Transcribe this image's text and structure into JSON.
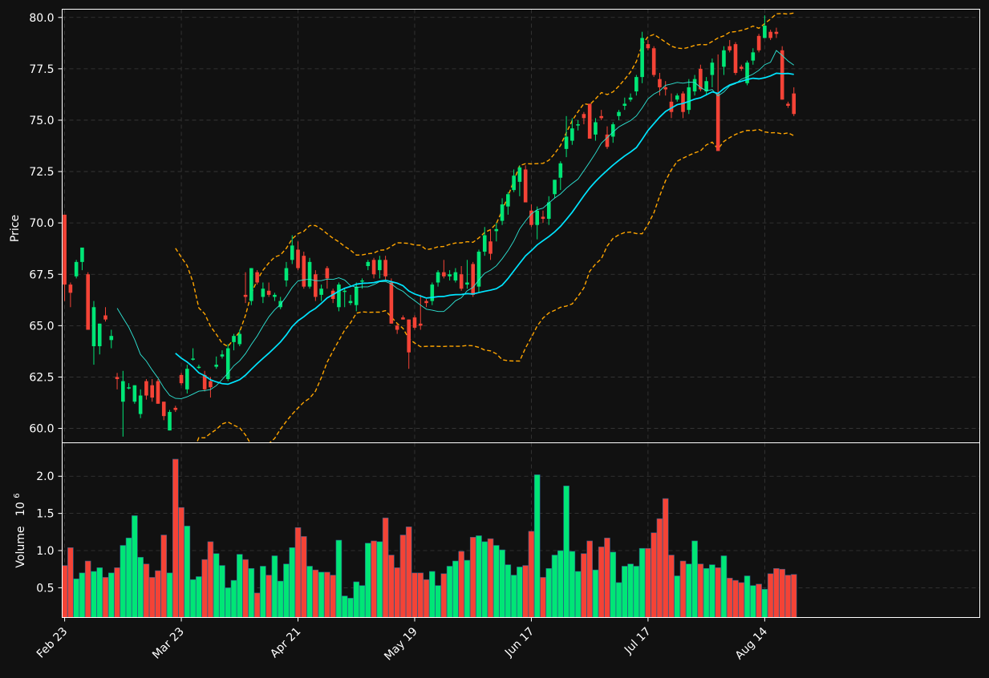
{
  "theme": {
    "background": "#111111",
    "axis_color": "#ffffff",
    "grid_color": "#3a3a3a",
    "up_color": "#00e676",
    "down_color": "#f44336",
    "sma_fast_color": "#2ee6d6",
    "sma_slow_color": "#00e5ff",
    "bollinger_color": "#ffa500"
  },
  "chart_data": {
    "type": "candlestick",
    "panels": {
      "price": {
        "ylabel": "Price",
        "ylim": [
          59.3,
          80.4
        ],
        "yticks": [
          "60.0",
          "62.5",
          "65.0",
          "67.5",
          "70.0",
          "72.5",
          "75.0",
          "77.5",
          "80.0"
        ],
        "grid": true
      },
      "volume": {
        "ylabel": "Volume",
        "ylabel_exponent": "10",
        "ylabel_exponent_power": "6",
        "ylim": [
          0.1,
          2.45
        ],
        "yticks": [
          "0.5",
          "1.0",
          "1.5",
          "2.0"
        ],
        "grid": true
      }
    },
    "x_tick_labels": [
      {
        "i": 0,
        "label": "Feb 23"
      },
      {
        "i": 20,
        "label": "Mar 23"
      },
      {
        "i": 40,
        "label": "Apr 21"
      },
      {
        "i": 60,
        "label": "May 19"
      },
      {
        "i": 80,
        "label": "Jun 17"
      },
      {
        "i": 100,
        "label": "Jul 17"
      },
      {
        "i": 120,
        "label": "Aug 14"
      }
    ],
    "n_bars": 126,
    "ohlcv": [
      [
        70.4,
        70.4,
        66.2,
        67.0,
        0.8
      ],
      [
        67.0,
        67.1,
        65.9,
        66.6,
        1.04
      ],
      [
        67.4,
        68.2,
        67.3,
        68.1,
        0.62
      ],
      [
        68.1,
        68.6,
        67.7,
        68.8,
        0.7
      ],
      [
        67.5,
        67.6,
        64.8,
        64.8,
        0.86
      ],
      [
        64.0,
        66.2,
        63.1,
        65.9,
        0.72
      ],
      [
        64.0,
        65.1,
        63.6,
        65.1,
        0.77
      ],
      [
        65.5,
        65.9,
        65.2,
        65.3,
        0.64
      ],
      [
        64.3,
        64.8,
        63.9,
        64.5,
        0.7
      ],
      [
        62.5,
        62.7,
        61.9,
        62.4,
        0.77
      ],
      [
        61.3,
        62.8,
        59.6,
        62.3,
        1.07
      ],
      [
        62.0,
        62.2,
        61.9,
        62.0,
        1.17
      ],
      [
        61.3,
        62.1,
        61.2,
        62.1,
        1.47
      ],
      [
        60.7,
        61.9,
        60.5,
        61.6,
        0.91
      ],
      [
        62.3,
        62.4,
        61.4,
        61.6,
        0.82
      ],
      [
        62.1,
        62.4,
        61.3,
        61.5,
        0.64
      ],
      [
        62.3,
        62.4,
        61.2,
        61.2,
        0.73
      ],
      [
        61.3,
        61.3,
        60.4,
        60.6,
        1.21
      ],
      [
        59.9,
        60.9,
        59.9,
        60.8,
        0.7
      ],
      [
        61.0,
        61.1,
        60.8,
        60.9,
        2.23
      ],
      [
        62.6,
        62.7,
        62.1,
        62.2,
        1.58
      ],
      [
        61.9,
        63.1,
        61.7,
        62.9,
        1.33
      ],
      [
        63.4,
        63.9,
        63.3,
        63.4,
        0.61
      ],
      [
        63.0,
        63.1,
        62.9,
        63.0,
        0.65
      ],
      [
        62.6,
        62.8,
        61.8,
        61.9,
        0.88
      ],
      [
        62.3,
        62.5,
        61.5,
        62.0,
        1.12
      ],
      [
        63.0,
        63.5,
        62.9,
        63.1,
        0.96
      ],
      [
        63.5,
        63.8,
        63.4,
        63.6,
        0.8
      ],
      [
        62.4,
        64.1,
        62.3,
        63.9,
        0.5
      ],
      [
        64.2,
        64.6,
        63.8,
        64.5,
        0.6
      ],
      [
        64.1,
        64.8,
        64.0,
        64.6,
        0.95
      ],
      [
        66.5,
        67.6,
        66.1,
        66.4,
        0.88
      ],
      [
        66.2,
        67.8,
        66.0,
        67.8,
        0.76
      ],
      [
        67.6,
        67.7,
        67.0,
        67.1,
        0.43
      ],
      [
        66.4,
        67.1,
        66.1,
        66.8,
        0.79
      ],
      [
        66.7,
        67.1,
        66.4,
        66.5,
        0.67
      ],
      [
        66.4,
        66.6,
        66.2,
        66.5,
        0.93
      ],
      [
        65.9,
        66.4,
        65.8,
        66.2,
        0.59
      ],
      [
        67.2,
        68.1,
        66.9,
        67.8,
        0.82
      ],
      [
        68.2,
        69.4,
        68.0,
        68.9,
        1.04
      ],
      [
        68.7,
        69.1,
        67.7,
        67.8,
        1.31
      ],
      [
        68.4,
        68.6,
        66.8,
        66.9,
        1.19
      ],
      [
        66.9,
        68.3,
        66.8,
        68.1,
        0.79
      ],
      [
        67.5,
        67.7,
        66.2,
        66.4,
        0.74
      ],
      [
        66.5,
        67.0,
        66.2,
        66.8,
        0.71
      ],
      [
        67.8,
        67.9,
        66.8,
        67.3,
        0.71
      ],
      [
        66.7,
        66.8,
        66.1,
        66.3,
        0.67
      ],
      [
        65.9,
        67.1,
        65.7,
        67.0,
        1.14
      ],
      [
        66.7,
        66.8,
        65.9,
        66.7,
        0.39
      ],
      [
        66.1,
        66.5,
        66.0,
        66.2,
        0.36
      ],
      [
        66.0,
        67.1,
        65.7,
        66.9,
        0.58
      ],
      [
        67.2,
        67.3,
        66.8,
        67.2,
        0.53
      ],
      [
        67.9,
        68.2,
        67.7,
        68.1,
        1.1
      ],
      [
        68.2,
        68.3,
        67.3,
        67.5,
        1.13
      ],
      [
        67.7,
        68.4,
        67.3,
        68.2,
        1.12
      ],
      [
        68.2,
        68.4,
        67.2,
        67.4,
        1.44
      ],
      [
        67.1,
        67.3,
        65.1,
        65.1,
        0.94
      ],
      [
        65.0,
        65.1,
        64.6,
        64.8,
        0.77
      ],
      [
        65.4,
        65.5,
        65.3,
        65.3,
        1.21
      ],
      [
        65.3,
        65.3,
        62.9,
        63.7,
        1.32
      ],
      [
        65.4,
        65.5,
        64.8,
        64.9,
        0.7
      ],
      [
        65.1,
        66.5,
        64.8,
        65.0,
        0.7
      ],
      [
        66.2,
        66.3,
        65.9,
        66.1,
        0.61
      ],
      [
        66.2,
        67.1,
        66.0,
        67.0,
        0.72
      ],
      [
        67.1,
        67.7,
        66.9,
        67.6,
        0.53
      ],
      [
        67.6,
        68.2,
        67.3,
        67.4,
        0.69
      ],
      [
        67.4,
        67.7,
        67.2,
        67.5,
        0.79
      ],
      [
        67.2,
        67.8,
        67.1,
        67.6,
        0.86
      ],
      [
        67.5,
        67.9,
        66.7,
        66.8,
        0.99
      ],
      [
        67.0,
        68.2,
        66.8,
        67.1,
        0.87
      ],
      [
        68.0,
        68.1,
        66.4,
        66.5,
        1.18
      ],
      [
        66.9,
        68.7,
        66.6,
        68.6,
        1.2
      ],
      [
        68.6,
        69.8,
        68.4,
        69.4,
        1.12
      ],
      [
        69.1,
        69.7,
        68.2,
        68.5,
        1.16
      ],
      [
        69.6,
        70.0,
        69.1,
        69.7,
        1.07
      ],
      [
        70.1,
        71.2,
        69.9,
        70.9,
        1.01
      ],
      [
        70.8,
        71.5,
        70.4,
        71.4,
        0.81
      ],
      [
        71.6,
        72.6,
        71.5,
        72.3,
        0.67
      ],
      [
        72.0,
        72.8,
        71.3,
        72.7,
        0.78
      ],
      [
        72.6,
        72.8,
        71.1,
        71.0,
        0.8
      ],
      [
        70.6,
        70.9,
        69.8,
        69.9,
        1.26
      ],
      [
        69.9,
        70.8,
        69.2,
        70.6,
        2.02
      ],
      [
        70.3,
        70.6,
        70.0,
        70.2,
        0.64
      ],
      [
        70.2,
        71.3,
        69.9,
        71.0,
        0.76
      ],
      [
        71.4,
        72.1,
        71.2,
        72.1,
        0.94
      ],
      [
        72.2,
        73.0,
        71.6,
        72.9,
        1.0
      ],
      [
        73.6,
        75.2,
        73.2,
        74.2,
        1.87
      ],
      [
        74.0,
        75.1,
        73.8,
        74.6,
        0.99
      ],
      [
        74.8,
        75.0,
        74.5,
        74.8,
        0.72
      ],
      [
        75.3,
        75.4,
        74.8,
        75.1,
        0.96
      ],
      [
        75.8,
        75.8,
        74.1,
        74.1,
        1.13
      ],
      [
        74.3,
        75.1,
        74.0,
        74.9,
        0.74
      ],
      [
        75.2,
        75.5,
        75.0,
        75.1,
        1.05
      ],
      [
        74.3,
        74.7,
        73.6,
        73.7,
        1.17
      ],
      [
        74.2,
        74.9,
        73.9,
        74.8,
        0.98
      ],
      [
        75.2,
        75.5,
        75.0,
        75.4,
        0.57
      ],
      [
        75.7,
        76.1,
        75.5,
        75.8,
        0.79
      ],
      [
        76.0,
        76.3,
        75.9,
        76.1,
        0.82
      ],
      [
        76.4,
        77.2,
        76.2,
        77.1,
        0.79
      ],
      [
        77.1,
        79.3,
        76.8,
        79.0,
        1.03
      ],
      [
        78.7,
        78.9,
        78.4,
        78.5,
        1.03
      ],
      [
        78.5,
        78.6,
        77.1,
        77.2,
        1.24
      ],
      [
        77.0,
        77.3,
        76.2,
        76.6,
        1.43
      ],
      [
        76.6,
        76.9,
        76.2,
        76.5,
        1.7
      ],
      [
        75.9,
        76.3,
        75.1,
        75.4,
        0.94
      ],
      [
        76.0,
        76.3,
        75.9,
        76.2,
        0.66
      ],
      [
        76.3,
        76.4,
        75.1,
        75.4,
        0.86
      ],
      [
        75.5,
        77.0,
        75.3,
        76.6,
        0.82
      ],
      [
        76.4,
        77.2,
        76.2,
        77.0,
        1.13
      ],
      [
        77.5,
        77.7,
        76.4,
        76.5,
        0.82
      ],
      [
        76.4,
        77.1,
        76.2,
        76.9,
        0.76
      ],
      [
        77.2,
        78.0,
        76.6,
        77.8,
        0.81
      ],
      [
        76.3,
        78.2,
        73.6,
        73.5,
        0.77
      ],
      [
        77.6,
        78.6,
        77.2,
        78.4,
        0.93
      ],
      [
        78.6,
        78.9,
        78.3,
        78.4,
        0.63
      ],
      [
        78.7,
        78.8,
        77.2,
        77.3,
        0.6
      ],
      [
        77.6,
        77.7,
        77.4,
        77.5,
        0.57
      ],
      [
        76.8,
        77.9,
        76.7,
        77.8,
        0.66
      ],
      [
        77.9,
        78.5,
        77.7,
        78.3,
        0.53
      ],
      [
        79.1,
        79.2,
        78.3,
        78.4,
        0.55
      ],
      [
        79.0,
        80.1,
        79.0,
        79.6,
        0.48
      ],
      [
        79.3,
        79.4,
        78.9,
        79.0,
        0.69
      ],
      [
        79.3,
        79.5,
        79.0,
        79.2,
        0.76
      ],
      [
        78.4,
        78.6,
        76.0,
        76.0,
        0.75
      ],
      [
        75.8,
        75.9,
        75.6,
        75.7,
        0.67
      ],
      [
        76.3,
        76.6,
        75.2,
        75.3,
        0.68
      ]
    ],
    "overlays": {
      "sma_fast_window": 10,
      "sma_slow_window": 20,
      "bollinger_window": 20,
      "bollinger_k": 2
    }
  }
}
